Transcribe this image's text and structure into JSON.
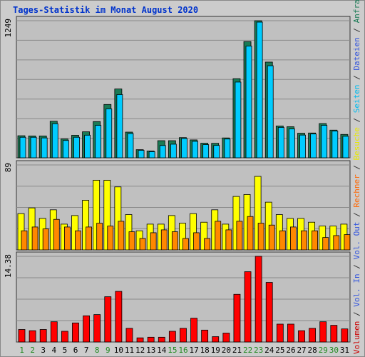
{
  "title": "Tages-Statistik im Monat August 2020",
  "colors": {
    "background": "#cccccc",
    "plot_bg": "#c0c0c0",
    "grid": "#8a8a8a",
    "weekday_label": "#000000",
    "weekend_label": "#228b22",
    "title": "#0033cc"
  },
  "legend_right": [
    {
      "text": "Volumen",
      "color": "#cc0000"
    },
    {
      "text": " / ",
      "color": "#333333"
    },
    {
      "text": "Vol. In",
      "color": "#3355dd"
    },
    {
      "text": " / ",
      "color": "#333333"
    },
    {
      "text": "Vol. Out",
      "color": "#3355dd"
    },
    {
      "text": " / ",
      "color": "#333333"
    },
    {
      "text": "Rechner",
      "color": "#ff6600"
    },
    {
      "text": " / ",
      "color": "#333333"
    },
    {
      "text": "Besuche",
      "color": "#e8e800"
    },
    {
      "text": " / ",
      "color": "#333333"
    },
    {
      "text": "Seiten",
      "color": "#00bbee"
    },
    {
      "text": " / ",
      "color": "#333333"
    },
    {
      "text": "Dateien",
      "color": "#3355dd"
    },
    {
      "text": " / ",
      "color": "#333333"
    },
    {
      "text": "Anfragen",
      "color": "#1a7a55"
    }
  ],
  "chart_data": [
    {
      "type": "bar",
      "panel": "top",
      "ymax_label": "1249",
      "ylim": [
        0,
        1249
      ],
      "categories": [
        "1",
        "2",
        "3",
        "4",
        "5",
        "6",
        "7",
        "8",
        "9",
        "10",
        "11",
        "12",
        "13",
        "14",
        "15",
        "16",
        "17",
        "18",
        "19",
        "20",
        "21",
        "22",
        "23",
        "24",
        "25",
        "26",
        "27",
        "28",
        "29",
        "30",
        "31"
      ],
      "weekend": [
        "1",
        "2",
        "8",
        "9",
        "15",
        "16",
        "22",
        "23",
        "29",
        "30"
      ],
      "series": [
        {
          "name": "Anfragen",
          "color": "#1a7a55",
          "values": [
            201,
            199,
            199,
            333,
            171,
            205,
            237,
            330,
            486,
            627,
            234,
            74,
            62,
            156,
            156,
            184,
            163,
            133,
            132,
            181,
            721,
            1059,
            1249,
            872,
            290,
            283,
            224,
            226,
            312,
            252,
            213
          ]
        },
        {
          "name": "Dateien",
          "color": "#3355dd",
          "values": [
            0,
            0,
            0,
            0,
            0,
            0,
            0,
            0,
            0,
            0,
            0,
            0,
            0,
            0,
            0,
            0,
            0,
            0,
            0,
            0,
            0,
            0,
            0,
            0,
            0,
            0,
            0,
            0,
            0,
            0,
            0
          ]
        },
        {
          "name": "Seiten",
          "color": "#00ccff",
          "values": [
            187,
            187,
            181,
            310,
            158,
            187,
            206,
            296,
            446,
            576,
            221,
            68,
            56,
            112,
            124,
            176,
            150,
            120,
            113,
            171,
            690,
            1018,
            1236,
            839,
            277,
            263,
            207,
            217,
            296,
            244,
            196
          ]
        }
      ]
    },
    {
      "type": "bar",
      "panel": "middle",
      "ymax_label": "89",
      "ylim": [
        0,
        89
      ],
      "categories": [
        "1",
        "2",
        "3",
        "4",
        "5",
        "6",
        "7",
        "8",
        "9",
        "10",
        "11",
        "12",
        "13",
        "14",
        "15",
        "16",
        "17",
        "18",
        "19",
        "20",
        "21",
        "22",
        "23",
        "24",
        "25",
        "26",
        "27",
        "28",
        "29",
        "30",
        "31"
      ],
      "series": [
        {
          "name": "Besuche",
          "color": "#ffff00",
          "values": [
            38,
            44,
            33,
            42,
            27,
            36,
            52,
            73,
            73,
            66,
            37,
            20,
            27,
            27,
            36,
            28,
            38,
            29,
            42,
            27,
            56,
            58,
            77,
            50,
            37,
            33,
            33,
            29,
            25,
            25,
            27
          ]
        },
        {
          "name": "Rechner",
          "color": "#ff8800",
          "values": [
            20,
            24,
            22,
            32,
            24,
            20,
            24,
            28,
            25,
            30,
            19,
            12,
            18,
            21,
            19,
            12,
            18,
            12,
            30,
            21,
            30,
            35,
            28,
            26,
            20,
            24,
            20,
            20,
            13,
            15,
            16
          ]
        }
      ]
    },
    {
      "type": "bar",
      "panel": "bottom",
      "ymax_label": "14.38",
      "ylim": [
        0,
        14.38
      ],
      "categories": [
        "1",
        "2",
        "3",
        "4",
        "5",
        "6",
        "7",
        "8",
        "9",
        "10",
        "11",
        "12",
        "13",
        "14",
        "15",
        "16",
        "17",
        "18",
        "19",
        "20",
        "21",
        "22",
        "23",
        "24",
        "25",
        "26",
        "27",
        "28",
        "29",
        "30",
        "31"
      ],
      "series": [
        {
          "name": "Volumen",
          "color": "#ff0000",
          "values": [
            2.1,
            1.9,
            2.1,
            3.4,
            1.8,
            3.2,
            4.4,
            4.6,
            7.6,
            8.5,
            2.3,
            0.7,
            0.8,
            0.8,
            1.8,
            2.3,
            4.0,
            2.0,
            0.9,
            1.5,
            8.0,
            11.8,
            14.38,
            10.0,
            3.0,
            3.0,
            1.9,
            2.3,
            3.4,
            2.8,
            2.2
          ]
        }
      ]
    }
  ]
}
